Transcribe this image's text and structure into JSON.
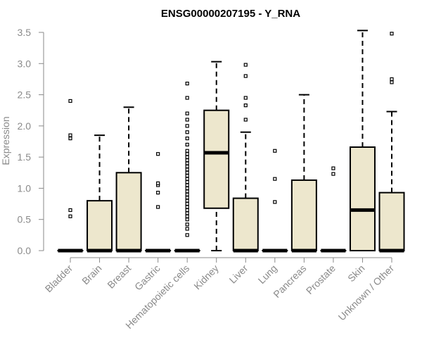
{
  "chart_data": {
    "type": "box",
    "title": "ENSG00000207195 - Y_RNA",
    "ylabel": "Expression",
    "xlabel": "",
    "ylim": [
      0,
      3.5
    ],
    "yticks": [
      "0.0",
      "0.5",
      "1.0",
      "1.5",
      "2.0",
      "2.5",
      "3.0",
      "3.5"
    ],
    "box_fill": "#ede7cd",
    "stroke_color": "#000000",
    "axis_color": "#8a8a8a",
    "categories": [
      "Bladder",
      "Brain",
      "Breast",
      "Gastric",
      "Hematopoietic cells",
      "Kidney",
      "Liver",
      "Lung",
      "Pancreas",
      "Prostate",
      "Skin",
      "Unknown / Other"
    ],
    "boxes": [
      {
        "name": "Bladder",
        "q1": 0,
        "median": 0,
        "q3": 0,
        "whisker_low": 0,
        "whisker_high": 0,
        "outliers": [
          0.55,
          0.65,
          1.8,
          1.85,
          2.4
        ]
      },
      {
        "name": "Brain",
        "q1": 0,
        "median": 0,
        "q3": 0.8,
        "whisker_low": 0,
        "whisker_high": 1.85,
        "outliers": []
      },
      {
        "name": "Breast",
        "q1": 0,
        "median": 0,
        "q3": 1.25,
        "whisker_low": 0,
        "whisker_high": 2.3,
        "outliers": []
      },
      {
        "name": "Gastric",
        "q1": 0,
        "median": 0,
        "q3": 0,
        "whisker_low": 0,
        "whisker_high": 0,
        "outliers": [
          0.7,
          0.93,
          1.05,
          1.08,
          1.55
        ]
      },
      {
        "name": "Hematopoietic cells",
        "q1": 0,
        "median": 0,
        "q3": 0,
        "whisker_low": 0,
        "whisker_high": 0,
        "outliers": [
          0.25,
          0.35,
          0.42,
          0.5,
          0.55,
          0.6,
          0.65,
          0.7,
          0.75,
          0.8,
          0.85,
          0.9,
          0.95,
          1.0,
          1.05,
          1.1,
          1.15,
          1.2,
          1.25,
          1.3,
          1.35,
          1.4,
          1.45,
          1.5,
          1.55,
          1.6,
          1.7,
          1.8,
          1.9,
          2.0,
          2.1,
          2.2,
          2.45,
          2.68
        ]
      },
      {
        "name": "Kidney",
        "q1": 0.68,
        "median": 1.57,
        "q3": 2.25,
        "whisker_low": 0,
        "whisker_high": 3.03,
        "outliers": []
      },
      {
        "name": "Liver",
        "q1": 0,
        "median": 0,
        "q3": 0.84,
        "whisker_low": 0,
        "whisker_high": 1.9,
        "outliers": [
          2.1,
          2.33,
          2.45,
          2.8,
          2.98
        ]
      },
      {
        "name": "Lung",
        "q1": 0,
        "median": 0,
        "q3": 0,
        "whisker_low": 0,
        "whisker_high": 0,
        "outliers": [
          0.78,
          1.15,
          1.6
        ]
      },
      {
        "name": "Pancreas",
        "q1": 0,
        "median": 0,
        "q3": 1.13,
        "whisker_low": 0,
        "whisker_high": 2.5,
        "outliers": []
      },
      {
        "name": "Prostate",
        "q1": 0,
        "median": 0,
        "q3": 0,
        "whisker_low": 0,
        "whisker_high": 0,
        "outliers": [
          1.23,
          1.32
        ]
      },
      {
        "name": "Skin",
        "q1": 0,
        "median": 0.65,
        "q3": 1.66,
        "whisker_low": 0,
        "whisker_high": 3.53,
        "outliers": []
      },
      {
        "name": "Unknown / Other",
        "q1": 0,
        "median": 0,
        "q3": 0.93,
        "whisker_low": 0,
        "whisker_high": 2.23,
        "outliers": [
          2.7,
          2.75,
          3.48
        ]
      }
    ]
  }
}
